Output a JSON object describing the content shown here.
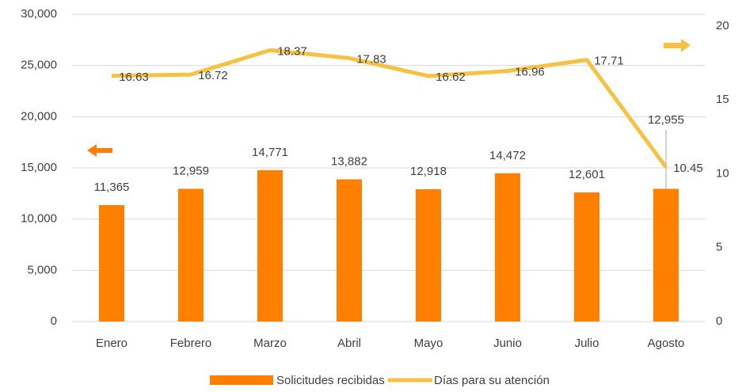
{
  "chart_data": {
    "type": "bar_line",
    "categories": [
      "Enero",
      "Febrero",
      "Marzo",
      "Abril",
      "Mayo",
      "Junio",
      "Julio",
      "Agosto"
    ],
    "series": [
      {
        "name": "Solicitudes recibidas",
        "type": "bar",
        "color": "#ff7f00",
        "values": [
          11365,
          12959,
          14771,
          13882,
          12918,
          14472,
          12601,
          12955
        ],
        "value_labels": [
          "11,365",
          "12,959",
          "14,771",
          "13,882",
          "12,918",
          "14,472",
          "12,601",
          "12,955"
        ]
      },
      {
        "name": "Días para su atención",
        "type": "line",
        "axis": "y2",
        "color": "#f7c243",
        "values": [
          16.63,
          16.72,
          18.37,
          17.83,
          16.62,
          16.96,
          17.71,
          10.45
        ]
      }
    ],
    "ylim": [
      0,
      30000
    ],
    "yticks": [
      0,
      {
        "value": 5000,
        "label": "5,000"
      },
      {
        "value": 10000,
        "label": "10,000"
      },
      {
        "value": 15000,
        "label": "15,000"
      },
      {
        "value": 20000,
        "label": "20,000"
      },
      {
        "value": 25000,
        "label": "25,000"
      },
      {
        "value": 30000,
        "label": "30,000"
      }
    ],
    "y2lim": [
      0,
      20.8
    ],
    "y2ticks": [
      0,
      5,
      10,
      15,
      20
    ],
    "grid": true,
    "legend": "bottom"
  }
}
